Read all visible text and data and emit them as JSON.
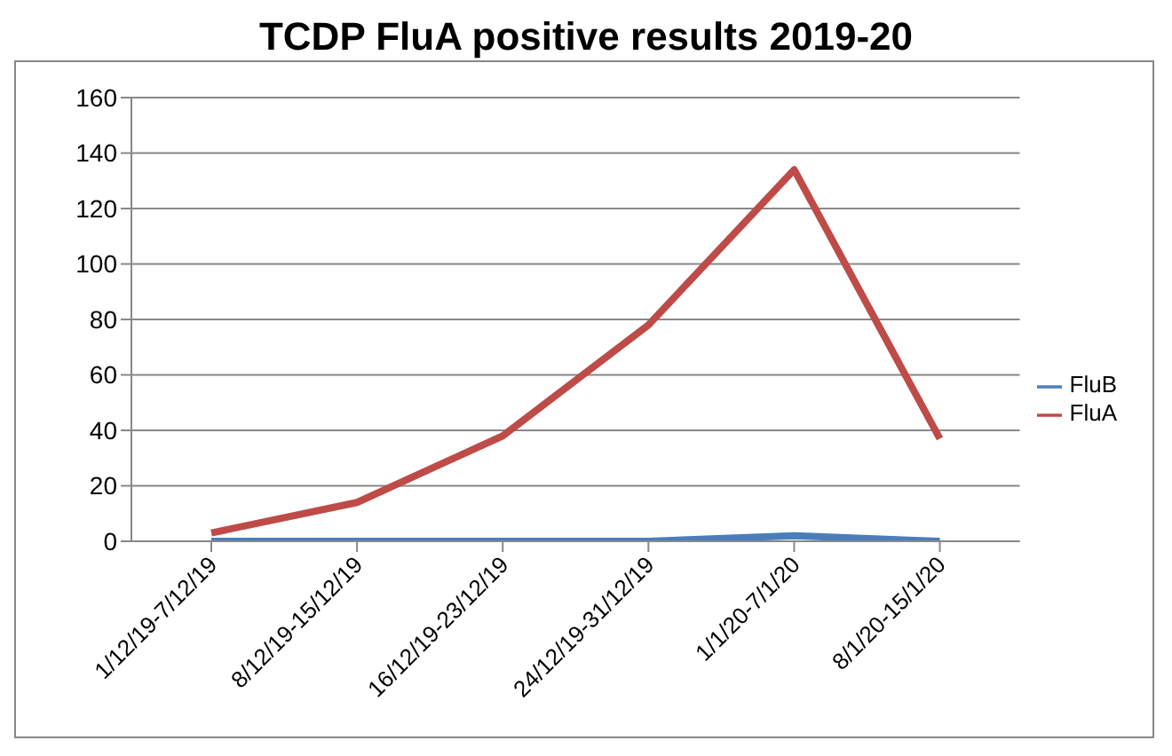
{
  "chart_data": {
    "type": "line",
    "title": "TCDP FluA positive results 2019-20",
    "categories": [
      "1/12/19-7/12/19",
      "8/12/19-15/12/19",
      "16/12/19-23/12/19",
      "24/12/19-31/12/19",
      "1/1/20-7/1/20",
      "8/1/20-15/1/20"
    ],
    "series": [
      {
        "name": "FluB",
        "color": "#4a7ebb",
        "values": [
          0,
          0,
          0,
          0,
          2,
          0
        ]
      },
      {
        "name": "FluA",
        "color": "#be4b48",
        "values": [
          3,
          14,
          38,
          78,
          134,
          37
        ]
      }
    ],
    "ylim": [
      0,
      160
    ],
    "yticks": [
      0,
      20,
      40,
      60,
      80,
      100,
      120,
      140,
      160
    ],
    "grid": "y",
    "legend": "right",
    "marker": "none",
    "line_style": "solid"
  }
}
